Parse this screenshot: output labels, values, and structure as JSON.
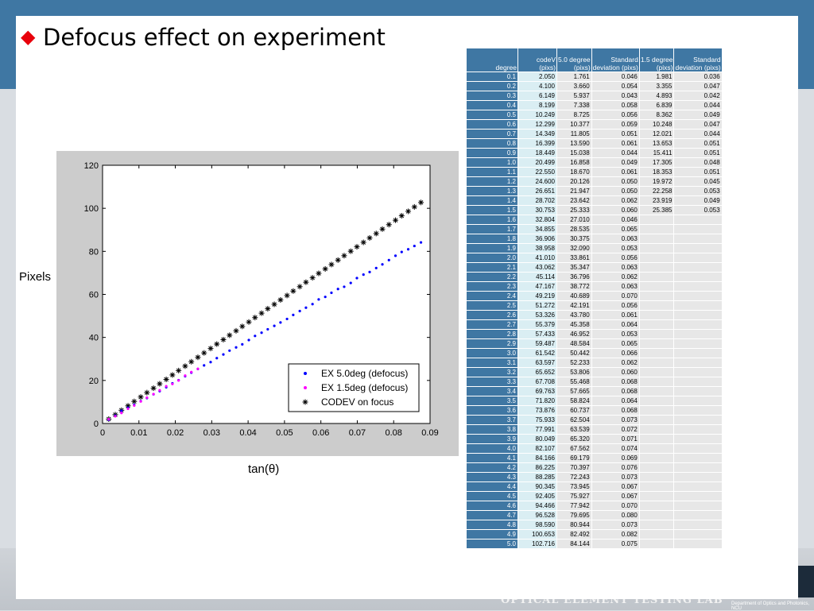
{
  "slide": {
    "title": "Defocus effect  on experiment",
    "bullet_color": "#e8000b",
    "header_color": "#3f77a3",
    "footer_lab": "OPTICAL ELEMENT TESTING LAB",
    "footer_dept": "Department of Optics and Photonics, NCU"
  },
  "axis_captions": {
    "y": "Pixels",
    "x": "tan(θ)"
  },
  "chart_data": {
    "type": "scatter",
    "xlim": [
      0,
      0.09
    ],
    "ylim": [
      0,
      120
    ],
    "xticks": [
      "0",
      "0.01",
      "0.02",
      "0.03",
      "0.04",
      "0.05",
      "0.06",
      "0.07",
      "0.08",
      "0.09"
    ],
    "yticks": [
      "0",
      "20",
      "40",
      "60",
      "80",
      "100",
      "120"
    ],
    "grid": false,
    "legend_position": "bottom-right",
    "x": [
      0.0017,
      0.0035,
      0.0052,
      0.007,
      0.0087,
      0.0105,
      0.0122,
      0.014,
      0.0157,
      0.0175,
      0.0192,
      0.0209,
      0.0227,
      0.0244,
      0.0262,
      0.0279,
      0.0297,
      0.0314,
      0.0332,
      0.0349,
      0.0367,
      0.0384,
      0.0402,
      0.0419,
      0.0437,
      0.0454,
      0.0472,
      0.0489,
      0.0507,
      0.0524,
      0.0542,
      0.0559,
      0.0577,
      0.0594,
      0.0612,
      0.0629,
      0.0647,
      0.0664,
      0.0682,
      0.0699,
      0.0717,
      0.0734,
      0.0752,
      0.0769,
      0.0787,
      0.0805,
      0.0822,
      0.084,
      0.0857,
      0.0875
    ],
    "series": [
      {
        "name": "EX 5.0deg (defocus)",
        "color": "#0000ff",
        "marker": "dot",
        "values": [
          1.761,
          3.66,
          5.937,
          7.338,
          8.725,
          10.377,
          11.805,
          13.59,
          15.038,
          16.858,
          18.67,
          20.126,
          21.947,
          23.642,
          25.333,
          27.01,
          28.535,
          30.375,
          32.09,
          33.861,
          35.347,
          36.796,
          38.772,
          40.689,
          42.191,
          43.78,
          45.358,
          46.952,
          48.584,
          50.442,
          52.233,
          53.806,
          55.468,
          57.665,
          58.824,
          60.737,
          62.504,
          63.539,
          65.32,
          67.562,
          69.179,
          70.397,
          72.243,
          73.945,
          75.927,
          77.942,
          79.695,
          80.944,
          82.492,
          84.144
        ]
      },
      {
        "name": "EX 1.5deg (defocus)",
        "color": "#ff00ff",
        "marker": "dot",
        "values": [
          1.981,
          3.355,
          4.893,
          6.839,
          8.362,
          10.248,
          12.021,
          13.653,
          15.411,
          17.305,
          18.353,
          19.972,
          22.258,
          23.919,
          25.385
        ]
      },
      {
        "name": "CODEV on focus",
        "color": "#000000",
        "marker": "star",
        "values": [
          2.05,
          4.1,
          6.149,
          8.199,
          10.249,
          12.299,
          14.349,
          16.399,
          18.449,
          20.499,
          22.55,
          24.6,
          26.651,
          28.702,
          30.753,
          32.804,
          34.855,
          36.906,
          38.958,
          41.01,
          43.062,
          45.114,
          47.167,
          49.219,
          51.272,
          53.326,
          55.379,
          57.433,
          59.487,
          61.542,
          63.597,
          65.652,
          67.708,
          69.763,
          71.82,
          73.876,
          75.933,
          77.991,
          80.049,
          82.107,
          84.166,
          86.225,
          88.285,
          90.345,
          92.405,
          94.466,
          96.528,
          98.59,
          100.653,
          102.716
        ]
      }
    ]
  },
  "table": {
    "headers": [
      "degree",
      "codeV\n(pixs)",
      "5.0 degree\n(pixs)",
      "Standard\ndeviation (pixs)",
      "1.5 degree\n(pixs)",
      "Standard\ndeviation (pixs)"
    ],
    "rows": [
      [
        "0.1",
        "2.050",
        "1.761",
        "0.046",
        "1.981",
        "0.036"
      ],
      [
        "0.2",
        "4.100",
        "3.660",
        "0.054",
        "3.355",
        "0.047"
      ],
      [
        "0.3",
        "6.149",
        "5.937",
        "0.043",
        "4.893",
        "0.042"
      ],
      [
        "0.4",
        "8.199",
        "7.338",
        "0.058",
        "6.839",
        "0.044"
      ],
      [
        "0.5",
        "10.249",
        "8.725",
        "0.056",
        "8.362",
        "0.049"
      ],
      [
        "0.6",
        "12.299",
        "10.377",
        "0.059",
        "10.248",
        "0.047"
      ],
      [
        "0.7",
        "14.349",
        "11.805",
        "0.051",
        "12.021",
        "0.044"
      ],
      [
        "0.8",
        "16.399",
        "13.590",
        "0.061",
        "13.653",
        "0.051"
      ],
      [
        "0.9",
        "18.449",
        "15.038",
        "0.044",
        "15.411",
        "0.051"
      ],
      [
        "1.0",
        "20.499",
        "16.858",
        "0.049",
        "17.305",
        "0.048"
      ],
      [
        "1.1",
        "22.550",
        "18.670",
        "0.061",
        "18.353",
        "0.051"
      ],
      [
        "1.2",
        "24.600",
        "20.126",
        "0.050",
        "19.972",
        "0.045"
      ],
      [
        "1.3",
        "26.651",
        "21.947",
        "0.050",
        "22.258",
        "0.053"
      ],
      [
        "1.4",
        "28.702",
        "23.642",
        "0.062",
        "23.919",
        "0.049"
      ],
      [
        "1.5",
        "30.753",
        "25.333",
        "0.060",
        "25.385",
        "0.053"
      ],
      [
        "1.6",
        "32.804",
        "27.010",
        "0.046",
        "",
        ""
      ],
      [
        "1.7",
        "34.855",
        "28.535",
        "0.065",
        "",
        ""
      ],
      [
        "1.8",
        "36.906",
        "30.375",
        "0.063",
        "",
        ""
      ],
      [
        "1.9",
        "38.958",
        "32.090",
        "0.053",
        "",
        ""
      ],
      [
        "2.0",
        "41.010",
        "33.861",
        "0.056",
        "",
        ""
      ],
      [
        "2.1",
        "43.062",
        "35.347",
        "0.063",
        "",
        ""
      ],
      [
        "2.2",
        "45.114",
        "36.796",
        "0.062",
        "",
        ""
      ],
      [
        "2.3",
        "47.167",
        "38.772",
        "0.063",
        "",
        ""
      ],
      [
        "2.4",
        "49.219",
        "40.689",
        "0.070",
        "",
        ""
      ],
      [
        "2.5",
        "51.272",
        "42.191",
        "0.056",
        "",
        ""
      ],
      [
        "2.6",
        "53.326",
        "43.780",
        "0.061",
        "",
        ""
      ],
      [
        "2.7",
        "55.379",
        "45.358",
        "0.064",
        "",
        ""
      ],
      [
        "2.8",
        "57.433",
        "46.952",
        "0.053",
        "",
        ""
      ],
      [
        "2.9",
        "59.487",
        "48.584",
        "0.065",
        "",
        ""
      ],
      [
        "3.0",
        "61.542",
        "50.442",
        "0.066",
        "",
        ""
      ],
      [
        "3.1",
        "63.597",
        "52.233",
        "0.062",
        "",
        ""
      ],
      [
        "3.2",
        "65.652",
        "53.806",
        "0.060",
        "",
        ""
      ],
      [
        "3.3",
        "67.708",
        "55.468",
        "0.068",
        "",
        ""
      ],
      [
        "3.4",
        "69.763",
        "57.665",
        "0.068",
        "",
        ""
      ],
      [
        "3.5",
        "71.820",
        "58.824",
        "0.064",
        "",
        ""
      ],
      [
        "3.6",
        "73.876",
        "60.737",
        "0.068",
        "",
        ""
      ],
      [
        "3.7",
        "75.933",
        "62.504",
        "0.073",
        "",
        ""
      ],
      [
        "3.8",
        "77.991",
        "63.539",
        "0.072",
        "",
        ""
      ],
      [
        "3.9",
        "80.049",
        "65.320",
        "0.071",
        "",
        ""
      ],
      [
        "4.0",
        "82.107",
        "67.562",
        "0.074",
        "",
        ""
      ],
      [
        "4.1",
        "84.166",
        "69.179",
        "0.069",
        "",
        ""
      ],
      [
        "4.2",
        "86.225",
        "70.397",
        "0.076",
        "",
        ""
      ],
      [
        "4.3",
        "88.285",
        "72.243",
        "0.073",
        "",
        ""
      ],
      [
        "4.4",
        "90.345",
        "73.945",
        "0.067",
        "",
        ""
      ],
      [
        "4.5",
        "92.405",
        "75.927",
        "0.067",
        "",
        ""
      ],
      [
        "4.6",
        "94.466",
        "77.942",
        "0.070",
        "",
        ""
      ],
      [
        "4.7",
        "96.528",
        "79.695",
        "0.080",
        "",
        ""
      ],
      [
        "4.8",
        "98.590",
        "80.944",
        "0.073",
        "",
        ""
      ],
      [
        "4.9",
        "100.653",
        "82.492",
        "0.082",
        "",
        ""
      ],
      [
        "5.0",
        "102.716",
        "84.144",
        "0.075",
        "",
        ""
      ]
    ]
  }
}
